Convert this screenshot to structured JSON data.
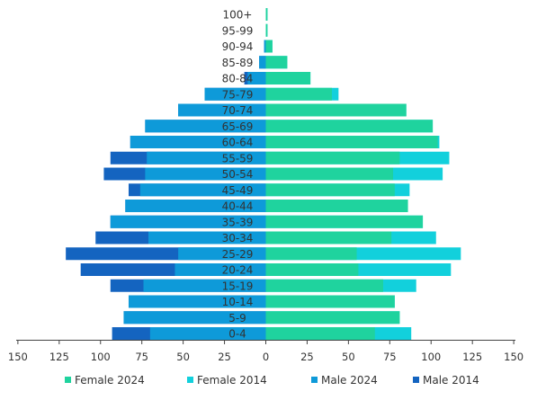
{
  "chart_data": {
    "type": "bar",
    "orientation": "horizontal-population-pyramid",
    "categories": [
      "0-4",
      "5-9",
      "10-14",
      "15-19",
      "20-24",
      "25-29",
      "30-34",
      "35-39",
      "40-44",
      "45-49",
      "50-54",
      "55-59",
      "60-64",
      "65-69",
      "70-74",
      "75-79",
      "80-84",
      "85-89",
      "90-94",
      "95-99",
      "100+"
    ],
    "series": [
      {
        "name": "Female 2024",
        "side": "right",
        "color": "#1fd39e",
        "values": [
          66,
          81,
          78,
          71,
          56,
          55,
          76,
          95,
          86,
          78,
          77,
          81,
          104,
          101,
          85,
          40,
          27,
          13,
          4,
          1,
          1
        ]
      },
      {
        "name": "Female 2014",
        "side": "right",
        "color": "#12d0dc",
        "values": [
          88,
          81,
          78,
          91,
          112,
          118,
          103,
          95,
          86,
          87,
          107,
          111,
          105,
          101,
          85,
          44,
          27,
          13,
          4,
          1,
          1
        ]
      },
      {
        "name": "Male 2024",
        "side": "left",
        "color": "#0e9ad9",
        "values": [
          70,
          86,
          83,
          74,
          55,
          53,
          71,
          94,
          85,
          76,
          73,
          72,
          82,
          73,
          53,
          37,
          11,
          4,
          1,
          0,
          0
        ]
      },
      {
        "name": "Male 2014",
        "side": "left",
        "color": "#1464c0",
        "values": [
          93,
          86,
          83,
          94,
          112,
          121,
          103,
          94,
          85,
          83,
          98,
          94,
          82,
          73,
          53,
          37,
          13,
          4,
          1,
          0,
          0
        ]
      }
    ],
    "xlim": [
      -150,
      150
    ],
    "xticks": [
      -150,
      -125,
      -100,
      -75,
      -50,
      -25,
      0,
      25,
      50,
      75,
      100,
      125,
      150
    ],
    "xtick_labels": [
      "150",
      "125",
      "100",
      "75",
      "50",
      "25",
      "0",
      "25",
      "50",
      "75",
      "100",
      "125",
      "150"
    ],
    "legend": {
      "placement": "bottom",
      "entries": [
        {
          "label": "Female 2024",
          "color": "#1fd39e"
        },
        {
          "label": "Female 2014",
          "color": "#12d0dc"
        },
        {
          "label": "Male 2024",
          "color": "#0e9ad9"
        },
        {
          "label": "Male 2014",
          "color": "#1464c0"
        }
      ]
    },
    "title": "",
    "xlabel": "",
    "ylabel": "",
    "grid": false
  }
}
